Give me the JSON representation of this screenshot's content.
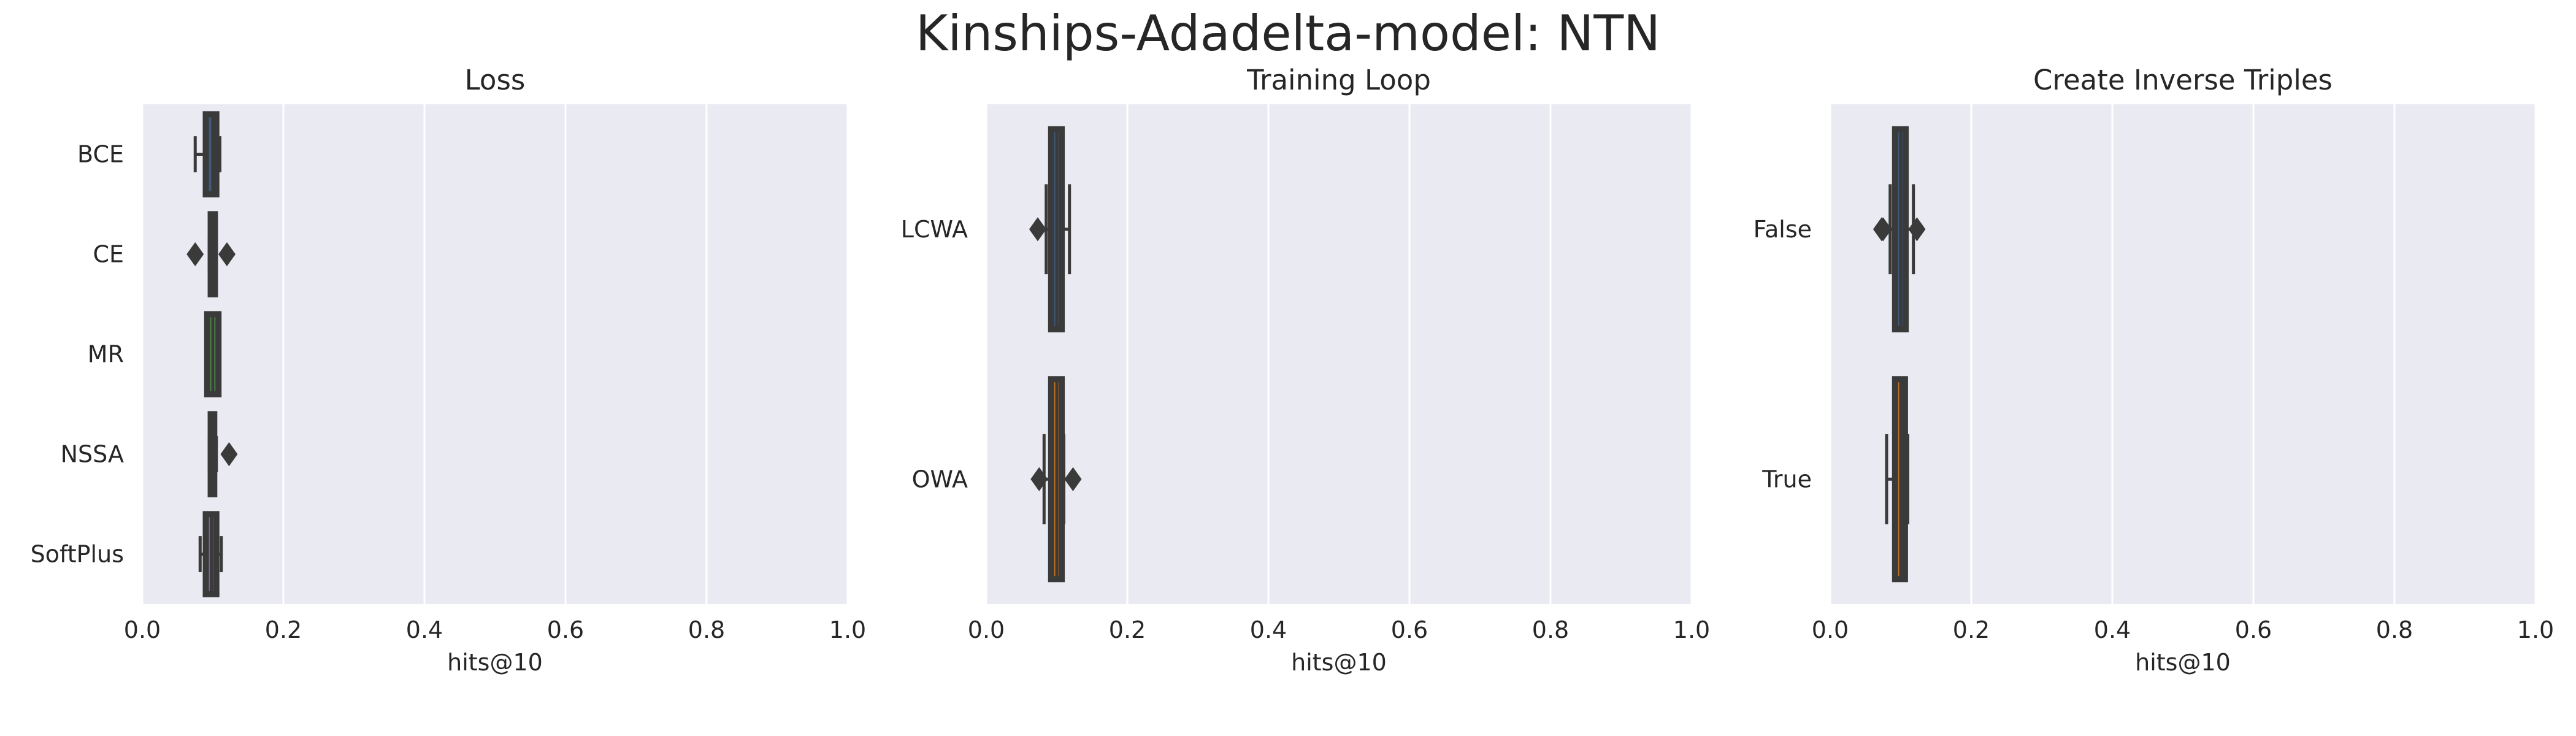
{
  "figure": {
    "title": "Kinships-Adadelta-model: NTN"
  },
  "style": {
    "panel_bg": "#eaeaf2",
    "grid_color": "#ffffff",
    "box_dark": "#3a3a3a",
    "box_inner_colors": [
      "#3e5b7b",
      "#c8741f",
      "#4f8a47",
      "#b03a35",
      "#7e64a4"
    ]
  },
  "chart_data": [
    {
      "type": "boxplot",
      "orientation": "horizontal",
      "title": "Loss",
      "xlabel": "hits@10",
      "xlim": [
        0.0,
        1.0
      ],
      "xticks": [
        "0.0",
        "0.2",
        "0.4",
        "0.6",
        "0.8",
        "1.0"
      ],
      "grid": true,
      "categories": [
        "BCE",
        "CE",
        "MR",
        "NSSA",
        "SoftPlus"
      ],
      "boxes": [
        {
          "min": 0.075,
          "q1": 0.09,
          "median": 0.1,
          "q3": 0.105,
          "max": 0.11,
          "outliers": []
        },
        {
          "min": 0.095,
          "q1": 0.097,
          "median": 0.1,
          "q3": 0.103,
          "max": 0.105,
          "outliers": [
            0.075,
            0.12
          ]
        },
        {
          "min": 0.09,
          "q1": 0.092,
          "median": 0.1,
          "q3": 0.108,
          "max": 0.11,
          "outliers": []
        },
        {
          "min": 0.095,
          "q1": 0.097,
          "median": 0.1,
          "q3": 0.102,
          "max": 0.105,
          "outliers": [
            0.123
          ]
        },
        {
          "min": 0.082,
          "q1": 0.09,
          "median": 0.098,
          "q3": 0.105,
          "max": 0.112,
          "outliers": []
        }
      ]
    },
    {
      "type": "boxplot",
      "orientation": "horizontal",
      "title": "Training Loop",
      "xlabel": "hits@10",
      "xlim": [
        0.0,
        1.0
      ],
      "xticks": [
        "0.0",
        "0.2",
        "0.4",
        "0.6",
        "0.8",
        "1.0"
      ],
      "grid": true,
      "categories": [
        "LCWA",
        "OWA"
      ],
      "boxes": [
        {
          "min": 0.085,
          "q1": 0.092,
          "median": 0.1,
          "q3": 0.107,
          "max": 0.118,
          "outliers": [
            0.073
          ]
        },
        {
          "min": 0.082,
          "q1": 0.092,
          "median": 0.1,
          "q3": 0.107,
          "max": 0.11,
          "outliers": [
            0.075,
            0.123
          ]
        }
      ]
    },
    {
      "type": "boxplot",
      "orientation": "horizontal",
      "title": "Create Inverse Triples",
      "xlabel": "hits@10",
      "xlim": [
        0.0,
        1.0
      ],
      "xticks": [
        "0.0",
        "0.2",
        "0.4",
        "0.6",
        "0.8",
        "1.0"
      ],
      "grid": true,
      "categories": [
        "False",
        "True"
      ],
      "boxes": [
        {
          "min": 0.085,
          "q1": 0.092,
          "median": 0.1,
          "q3": 0.107,
          "max": 0.118,
          "outliers": [
            0.073,
            0.075,
            0.123
          ]
        },
        {
          "min": 0.08,
          "q1": 0.092,
          "median": 0.1,
          "q3": 0.106,
          "max": 0.11,
          "outliers": []
        }
      ]
    }
  ]
}
